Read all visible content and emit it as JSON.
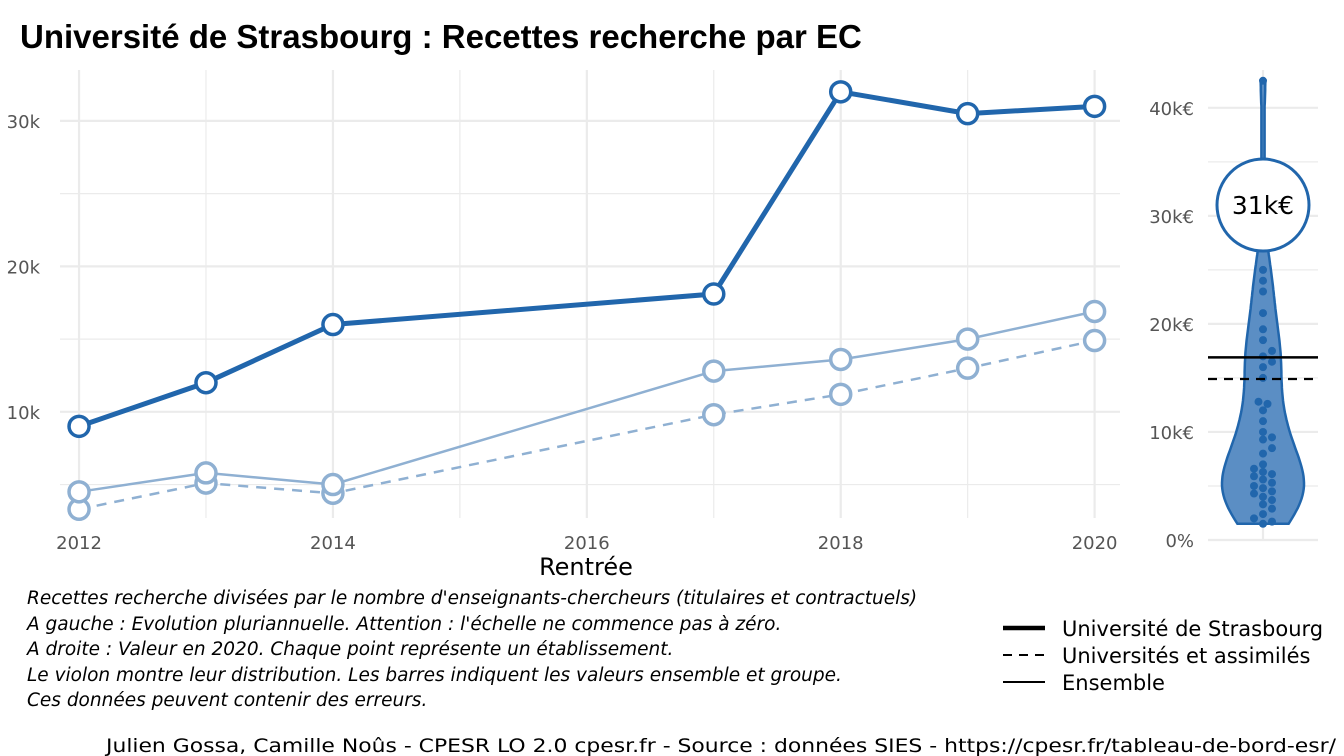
{
  "title": "Université de Strasbourg  :  Recettes recherche par EC",
  "colors": {
    "primary": "#2166ac",
    "secondary": "#8fb0d2",
    "grid": "#ebebeb",
    "violin_fill": "#5b8ec4"
  },
  "chart_data": [
    {
      "type": "line",
      "xlabel": "Rentrée",
      "ylabel": "",
      "xlim": [
        2011.85,
        2020.2
      ],
      "ylim": [
        2700,
        33500
      ],
      "x_ticks": [
        2012,
        2014,
        2016,
        2018,
        2020
      ],
      "y_ticks": [
        10000,
        20000,
        30000
      ],
      "y_tick_labels": [
        "10k",
        "20k",
        "30k"
      ],
      "series": [
        {
          "name": "Université de Strasbourg",
          "line_style": "solid-thick",
          "points": [
            {
              "x": 2012,
              "y": 9000
            },
            {
              "x": 2013,
              "y": 12000
            },
            {
              "x": 2014,
              "y": 16000
            },
            {
              "x": 2017,
              "y": 18100
            },
            {
              "x": 2018,
              "y": 32000
            },
            {
              "x": 2019,
              "y": 30500
            },
            {
              "x": 2020,
              "y": 31000
            }
          ]
        },
        {
          "name": "Universités et assimilés",
          "line_style": "dashed",
          "points": [
            {
              "x": 2012,
              "y": 3300
            },
            {
              "x": 2013,
              "y": 5100
            },
            {
              "x": 2014,
              "y": 4400
            },
            {
              "x": 2017,
              "y": 9800
            },
            {
              "x": 2018,
              "y": 11200
            },
            {
              "x": 2019,
              "y": 13000
            },
            {
              "x": 2020,
              "y": 14900
            }
          ]
        },
        {
          "name": "Ensemble",
          "line_style": "solid-thin",
          "points": [
            {
              "x": 2012,
              "y": 4500
            },
            {
              "x": 2013,
              "y": 5800
            },
            {
              "x": 2014,
              "y": 5000
            },
            {
              "x": 2017,
              "y": 12800
            },
            {
              "x": 2018,
              "y": 13600
            },
            {
              "x": 2019,
              "y": 15000
            },
            {
              "x": 2020,
              "y": 16900
            }
          ]
        }
      ]
    },
    {
      "type": "violin",
      "year": 2020,
      "ylim": [
        0,
        43500
      ],
      "y_ticks": [
        0,
        10000,
        20000,
        30000,
        40000
      ],
      "y_tick_labels": [
        "0%",
        "10k€",
        "20k€",
        "30k€",
        "40k€"
      ],
      "highlight_value": 31000,
      "highlight_label": "31k€",
      "ensemble_value": 16900,
      "group_value": 14900,
      "points": [
        42500,
        31000,
        25000,
        24000,
        23000,
        21000,
        19500,
        18500,
        17500,
        17000,
        16500,
        16000,
        15000,
        12800,
        12600,
        12000,
        11000,
        10000,
        9500,
        9300,
        8500,
        8000,
        7000,
        6600,
        6300,
        6100,
        5900,
        5600,
        5300,
        5000,
        4800,
        4500,
        4300,
        4000,
        3700,
        3300,
        2900,
        2400,
        2000,
        1700,
        1500
      ]
    }
  ],
  "notes": [
    "Recettes recherche divisées par le nombre d'enseignants-chercheurs (titulaires et contractuels)",
    "A gauche : Evolution pluriannuelle. Attention : l'échelle ne commence pas à zéro.",
    "A droite : Valeur en 2020. Chaque point représente un établissement.",
    "Le violon montre leur distribution. Les barres indiquent les valeurs ensemble et groupe.",
    "Ces données peuvent contenir des erreurs."
  ],
  "legend": [
    {
      "label": "Université de Strasbourg",
      "style": "solid-thick"
    },
    {
      "label": "Universités et assimilés",
      "style": "dashed"
    },
    {
      "label": "Ensemble",
      "style": "solid-thin"
    }
  ],
  "caption": "Julien Gossa, Camille Noûs - CPESR LO 2.0 cpesr.fr - Source : données SIES - https://cpesr.fr/tableau-de-bord-esr/"
}
